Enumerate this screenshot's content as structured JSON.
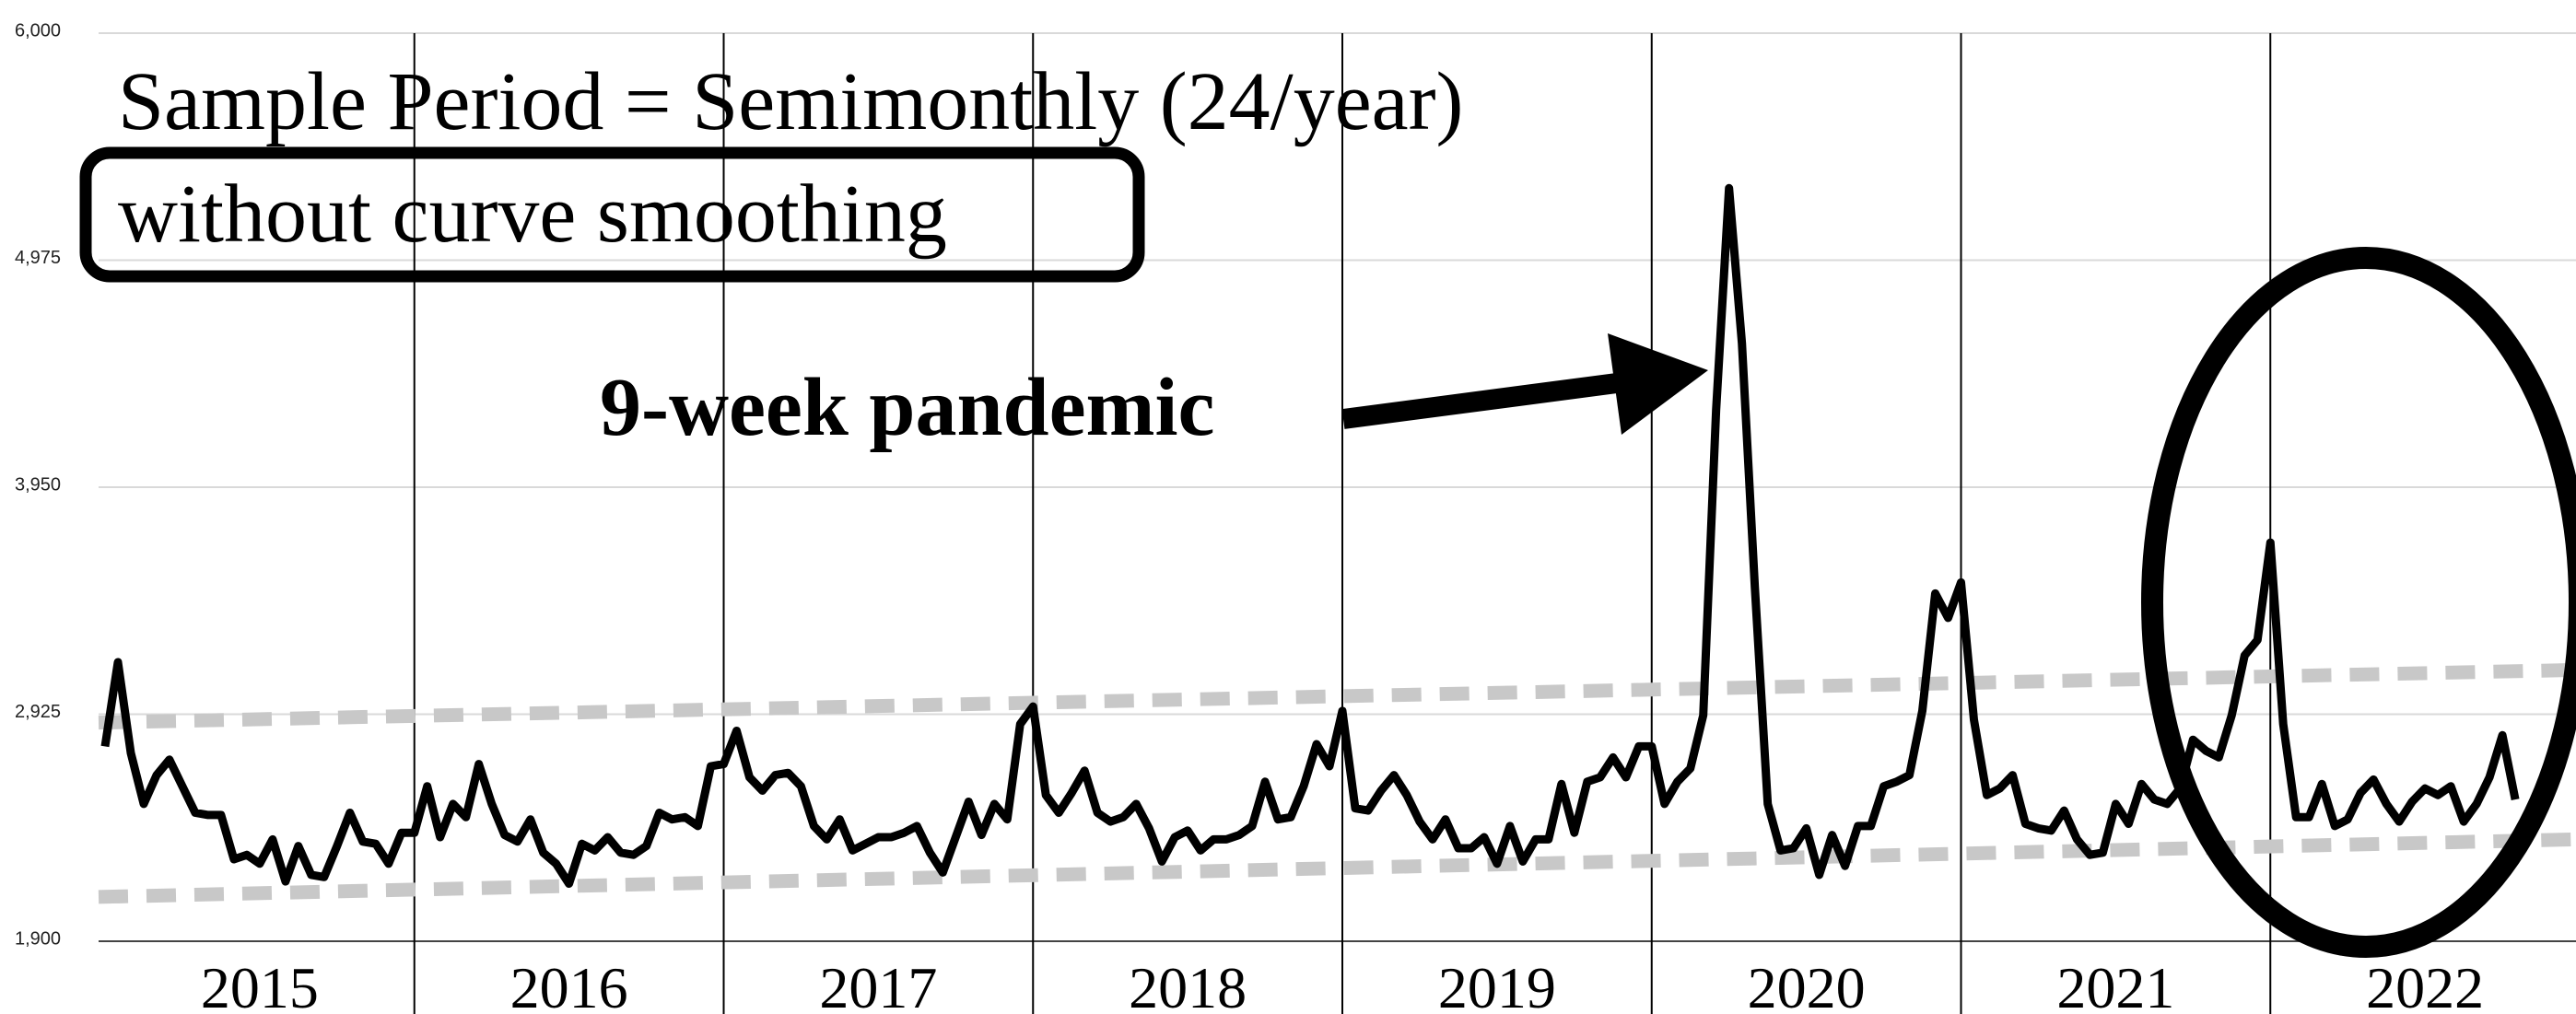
{
  "chart_data": {
    "type": "line",
    "title": "Sample Period = Semimonthly (24/year)",
    "subtitle": "without curve smoothing",
    "annotation": "9-week pandemic",
    "year_labels": [
      "2015",
      "2016",
      "2017",
      "2018",
      "2019",
      "2020",
      "2021",
      "2022"
    ],
    "ylim": [
      1900,
      6000
    ],
    "yticks": [
      {
        "value": 1900,
        "label": "1,900"
      },
      {
        "value": 2925,
        "label": "2,925"
      },
      {
        "value": 3950,
        "label": "3,950"
      },
      {
        "value": 4975,
        "label": "4,975"
      },
      {
        "value": 6000,
        "label": "6,000"
      }
    ],
    "grid": true,
    "series": [
      {
        "color": "#000000",
        "values": [
          2780,
          3160,
          2750,
          2520,
          2650,
          2720,
          2600,
          2480,
          2470,
          2470,
          2270,
          2290,
          2250,
          2360,
          2170,
          2330,
          2200,
          2190,
          2330,
          2480,
          2350,
          2340,
          2250,
          2390,
          2390,
          2600,
          2370,
          2520,
          2460,
          2700,
          2520,
          2380,
          2350,
          2450,
          2300,
          2250,
          2160,
          2340,
          2310,
          2370,
          2300,
          2290,
          2330,
          2480,
          2450,
          2460,
          2420,
          2690,
          2700,
          2850,
          2640,
          2580,
          2650,
          2660,
          2600,
          2420,
          2360,
          2450,
          2310,
          2340,
          2370,
          2370,
          2390,
          2420,
          2300,
          2210,
          2370,
          2530,
          2380,
          2520,
          2450,
          2880,
          2960,
          2560,
          2480,
          2570,
          2670,
          2480,
          2440,
          2460,
          2520,
          2410,
          2260,
          2370,
          2400,
          2310,
          2360,
          2360,
          2380,
          2420,
          2620,
          2450,
          2460,
          2600,
          2790,
          2690,
          2940,
          2500,
          2490,
          2580,
          2650,
          2560,
          2440,
          2360,
          2450,
          2320,
          2320,
          2370,
          2250,
          2420,
          2260,
          2360,
          2360,
          2610,
          2390,
          2620,
          2640,
          2730,
          2640,
          2780,
          2780,
          2520,
          2620,
          2680,
          2920,
          4300,
          5300,
          4600,
          3500,
          2520,
          2310,
          2320,
          2410,
          2200,
          2380,
          2240,
          2420,
          2420,
          2600,
          2620,
          2650,
          2940,
          3470,
          3360,
          3520,
          2900,
          2560,
          2590,
          2650,
          2430,
          2410,
          2400,
          2490,
          2360,
          2290,
          2300,
          2520,
          2430,
          2610,
          2540,
          2520,
          2590,
          2810,
          2760,
          2730,
          2920,
          3190,
          3260,
          3700,
          2880,
          2460,
          2460,
          2610,
          2420,
          2450,
          2570,
          2630,
          2520,
          2440,
          2530,
          2590,
          2560,
          2600,
          2440,
          2520,
          2640,
          2830,
          2540
        ]
      }
    ],
    "trend_lines": [
      {
        "color": "#c8c8c8",
        "values": [
          2887,
          3125
        ]
      },
      {
        "color": "#c8c8c8",
        "values": [
          2100,
          2360
        ]
      }
    ]
  }
}
